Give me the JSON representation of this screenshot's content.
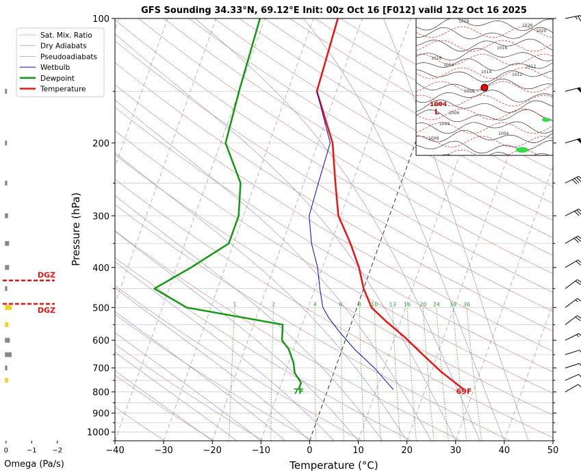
{
  "chart_data": {
    "type": "line",
    "title": "GFS Sounding 34.33°N, 69.12°E Init: 00z Oct 16 [F012] valid 12z Oct 16 2025",
    "xlabel": "Temperature (°C)",
    "ylabel": "Pressure (hPa)",
    "xlim": [
      -40,
      50
    ],
    "ylim": [
      1050,
      100
    ],
    "y_scale": "log",
    "grid": true,
    "x_ticks": [
      "−40",
      "−30",
      "−20",
      "−10",
      "0",
      "10",
      "20",
      "30",
      "40",
      "50"
    ],
    "y_ticks": [
      {
        "p": 100,
        "label": "100"
      },
      {
        "p": 200,
        "label": "200"
      },
      {
        "p": 300,
        "label": "300"
      },
      {
        "p": 400,
        "label": "400"
      },
      {
        "p": 500,
        "label": "500"
      },
      {
        "p": 600,
        "label": "600"
      },
      {
        "p": 700,
        "label": "700"
      },
      {
        "p": 800,
        "label": "800"
      },
      {
        "p": 900,
        "label": "900"
      },
      {
        "p": 1000,
        "label": "1000"
      }
    ],
    "minor_pressures": [
      150,
      250,
      350,
      450,
      550,
      650,
      750,
      850,
      950,
      1050
    ],
    "legend_position": "top-left",
    "legend": [
      {
        "label": "Sat. Mix. Ratio",
        "color": "#2ca02c",
        "style": "dotted",
        "width": 0.8
      },
      {
        "label": "Dry Adiabats",
        "color": "#d08080",
        "style": "solid",
        "width": 0.6
      },
      {
        "label": "Pseudoadiabats",
        "color": "#8888cc",
        "style": "solid",
        "width": 0.6
      },
      {
        "label": "Wetbulb",
        "color": "#0000ee",
        "style": "solid",
        "width": 1
      },
      {
        "label": "Dewpoint",
        "color": "#119911",
        "style": "solid",
        "width": 2.5
      },
      {
        "label": "Temperature",
        "color": "#ee1111",
        "style": "solid",
        "width": 2.5
      }
    ],
    "series": [
      {
        "name": "Temperature",
        "color": "#ee1111",
        "points": [
          [
            28,
            790
          ],
          [
            22,
            715
          ],
          [
            17,
            650
          ],
          [
            12,
            590
          ],
          [
            7,
            540
          ],
          [
            3,
            500
          ],
          [
            0,
            450
          ],
          [
            -2.5,
            400
          ],
          [
            -6,
            350
          ],
          [
            -10.5,
            300
          ],
          [
            -13.5,
            250
          ],
          [
            -17,
            200
          ],
          [
            -24,
            150
          ],
          [
            -25,
            100
          ]
        ]
      },
      {
        "name": "Dewpoint",
        "color": "#119911",
        "points": [
          [
            -6,
            790
          ],
          [
            -6,
            760
          ],
          [
            -8,
            720
          ],
          [
            -9,
            680
          ],
          [
            -11,
            630
          ],
          [
            -13,
            600
          ],
          [
            -14,
            550
          ],
          [
            -35,
            500
          ],
          [
            -43,
            450
          ],
          [
            -37,
            400
          ],
          [
            -31,
            350
          ],
          [
            -31,
            300
          ],
          [
            -33,
            250
          ],
          [
            -39,
            200
          ],
          [
            -40,
            150
          ],
          [
            -41,
            100
          ]
        ]
      },
      {
        "name": "Wetbulb",
        "color": "#0000ee",
        "points": [
          [
            13.5,
            790
          ],
          [
            8,
            700
          ],
          [
            2.5,
            630
          ],
          [
            -2,
            570
          ],
          [
            -5,
            530
          ],
          [
            -7,
            500
          ],
          [
            -9,
            450
          ],
          [
            -11,
            400
          ],
          [
            -14,
            350
          ],
          [
            -16.5,
            300
          ],
          [
            -17,
            250
          ],
          [
            -17.5,
            200
          ],
          [
            -24,
            150
          ]
        ]
      }
    ],
    "surface_labels": {
      "temperature": "69F",
      "dewpoint": "7F"
    },
    "mixing_ratio_labels": [
      "1",
      "2",
      "4",
      "6",
      "8",
      "10",
      "13",
      "16",
      "20",
      "24",
      "30",
      "36"
    ],
    "mixing_ratio_values": [
      1,
      2,
      4,
      6,
      8,
      10,
      13,
      16,
      20,
      24,
      30,
      36
    ],
    "wind_barbs": [
      {
        "p": 100,
        "u": -1.0,
        "v": 0.2,
        "pennants": 0,
        "full": 2,
        "half": 1
      },
      {
        "p": 150,
        "u": -1.0,
        "v": 0.25,
        "pennants": 1,
        "full": 0,
        "half": 0
      },
      {
        "p": 200,
        "u": -1.0,
        "v": 0.3,
        "pennants": 1,
        "full": 0,
        "half": 0
      },
      {
        "p": 250,
        "u": -0.9,
        "v": 0.45,
        "pennants": 0,
        "full": 4,
        "half": 0
      },
      {
        "p": 300,
        "u": -0.9,
        "v": 0.45,
        "pennants": 0,
        "full": 3,
        "half": 0
      },
      {
        "p": 350,
        "u": -0.85,
        "v": 0.5,
        "pennants": 0,
        "full": 3,
        "half": 0
      },
      {
        "p": 400,
        "u": -0.85,
        "v": 0.5,
        "pennants": 0,
        "full": 2,
        "half": 0
      },
      {
        "p": 450,
        "u": -0.8,
        "v": 0.6,
        "pennants": 0,
        "full": 2,
        "half": 0
      },
      {
        "p": 500,
        "u": -0.8,
        "v": 0.6,
        "pennants": 0,
        "full": 1,
        "half": 1
      },
      {
        "p": 550,
        "u": -0.8,
        "v": 0.6,
        "pennants": 0,
        "full": 2,
        "half": 0
      },
      {
        "p": 600,
        "u": -0.9,
        "v": 0.45,
        "pennants": 0,
        "full": 1,
        "half": 1
      },
      {
        "p": 650,
        "u": -0.95,
        "v": 0.3,
        "pennants": 0,
        "full": 1,
        "half": 0
      },
      {
        "p": 700,
        "u": -0.95,
        "v": 0.3,
        "pennants": 0,
        "full": 1,
        "half": 0
      },
      {
        "p": 750,
        "u": -0.9,
        "v": 0.4,
        "pennants": 0,
        "full": 1,
        "half": 0
      },
      {
        "p": 800,
        "u": -0.85,
        "v": 0.5,
        "pennants": 0,
        "full": 1,
        "half": 0
      }
    ],
    "omega": {
      "xlabel": "Omega (Pa/s)",
      "ticks": [
        {
          "v": 0,
          "label": "0"
        },
        {
          "v": -1,
          "label": "−1"
        },
        {
          "v": -2,
          "label": "−2"
        }
      ],
      "xlim": [
        0.1,
        -2.3
      ],
      "dgz_label": "DGZ",
      "dgz_pressures": [
        430,
        490
      ],
      "dgz_color": "#ee1111",
      "bars": [
        {
          "p": 150,
          "v": -0.03,
          "color": "#888888"
        },
        {
          "p": 200,
          "v": -0.02,
          "color": "#888888"
        },
        {
          "p": 250,
          "v": -0.05,
          "color": "#888888"
        },
        {
          "p": 300,
          "v": -0.08,
          "color": "#888888"
        },
        {
          "p": 350,
          "v": -0.12,
          "color": "#888888"
        },
        {
          "p": 400,
          "v": -0.12,
          "color": "#888888"
        },
        {
          "p": 450,
          "v": -0.05,
          "color": "#888888"
        },
        {
          "p": 500,
          "v": -0.22,
          "color": "#f2d21e"
        },
        {
          "p": 550,
          "v": -0.1,
          "color": "#f2d21e"
        },
        {
          "p": 600,
          "v": -0.15,
          "color": "#888888"
        },
        {
          "p": 650,
          "v": -0.22,
          "color": "#888888"
        },
        {
          "p": 700,
          "v": -0.05,
          "color": "#888888"
        },
        {
          "p": 750,
          "v": -0.08,
          "color": "#f2d21e"
        }
      ]
    },
    "inset_map": {
      "isobar_labels": [
        "1018",
        "1026",
        "1020",
        "1016",
        "1016",
        "1014",
        "1012",
        "1014",
        "1012",
        "1008",
        "1006",
        "1008",
        "1008",
        "1004",
        "1004"
      ],
      "low_label": "L",
      "low_value": "1004"
    }
  },
  "colors": {
    "isotherm": "#444444",
    "grid": "#cfcfcf",
    "frame": "#000000"
  }
}
